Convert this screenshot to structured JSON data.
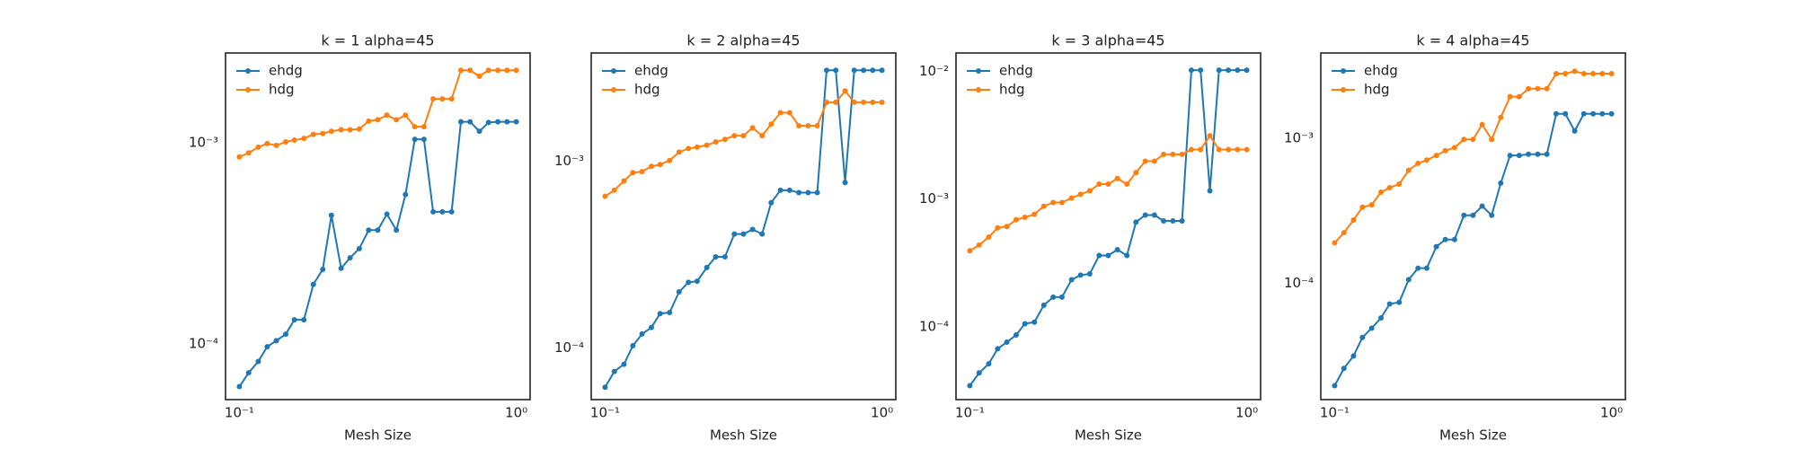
{
  "chart_data": [
    {
      "type": "line",
      "title": "k = 1 alpha=45",
      "xlabel": "Mesh Size",
      "xscale": "log",
      "yscale": "log",
      "legend": "upper left",
      "grid": false,
      "x": [
        0.1,
        0.108,
        0.117,
        0.126,
        0.136,
        0.147,
        0.158,
        0.171,
        0.185,
        0.2,
        0.215,
        0.233,
        0.251,
        0.271,
        0.293,
        0.316,
        0.341,
        0.369,
        0.398,
        0.43,
        0.464,
        0.501,
        0.541,
        0.584,
        0.631,
        0.681,
        0.736,
        0.794,
        0.858,
        0.926,
        1
      ],
      "xlim": [
        0.0891,
        1.122
      ],
      "xticks": [
        {
          "value": 0.1,
          "label": "10⁻¹"
        },
        {
          "value": 1,
          "label": "10⁰"
        }
      ],
      "ylim": [
        5.3e-05,
        0.00279
      ],
      "yticks": [
        {
          "value": 0.0001,
          "label": "10⁻⁴"
        },
        {
          "value": 0.001,
          "label": "10⁻³"
        }
      ],
      "series": [
        {
          "name": "ehdg",
          "color": "#1f77b4",
          "values": [
            6.15e-05,
            7.2e-05,
            8.2e-05,
            9.7e-05,
            0.000104,
            0.000112,
            0.000132,
            0.000132,
            0.000198,
            0.000235,
            0.000436,
            0.000238,
            0.000268,
            0.000298,
            0.000368,
            0.000368,
            0.000442,
            0.000368,
            0.000553,
            0.00104,
            0.00104,
            0.000454,
            0.000454,
            0.000454,
            0.00127,
            0.00127,
            0.00114,
            0.00126,
            0.00127,
            0.00127,
            0.00127
          ]
        },
        {
          "name": "hdg",
          "color": "#ff7f0e",
          "values": [
            0.00085,
            0.00089,
            0.00095,
            0.00099,
            0.00097,
            0.00101,
            0.00103,
            0.00105,
            0.0011,
            0.00111,
            0.00114,
            0.00116,
            0.00116,
            0.00117,
            0.00128,
            0.0013,
            0.00137,
            0.0013,
            0.00137,
            0.0012,
            0.0012,
            0.00165,
            0.00165,
            0.00165,
            0.00229,
            0.00229,
            0.00214,
            0.00229,
            0.00229,
            0.00229,
            0.00229
          ]
        }
      ]
    },
    {
      "type": "line",
      "title": "k = 2 alpha=45",
      "xlabel": "Mesh Size",
      "xscale": "log",
      "yscale": "log",
      "legend": "upper left",
      "grid": false,
      "x": [
        0.1,
        0.108,
        0.117,
        0.126,
        0.136,
        0.147,
        0.158,
        0.171,
        0.185,
        0.2,
        0.215,
        0.233,
        0.251,
        0.271,
        0.293,
        0.316,
        0.341,
        0.369,
        0.398,
        0.43,
        0.464,
        0.501,
        0.541,
        0.584,
        0.631,
        0.681,
        0.736,
        0.794,
        0.858,
        0.926,
        1
      ],
      "xlim": [
        0.0891,
        1.122
      ],
      "xticks": [
        {
          "value": 0.1,
          "label": "10⁻¹"
        },
        {
          "value": 1,
          "label": "10⁰"
        }
      ],
      "ylim": [
        5.3e-05,
        0.0038
      ],
      "yticks": [
        {
          "value": 0.0001,
          "label": "10⁻⁴"
        },
        {
          "value": 0.001,
          "label": "10⁻³"
        }
      ],
      "series": [
        {
          "name": "ehdg",
          "color": "#1f77b4",
          "values": [
            6.17e-05,
            7.5e-05,
            8.2e-05,
            0.000103,
            0.000119,
            0.000129,
            0.000153,
            0.000155,
            0.0002,
            0.000225,
            0.000228,
            0.00027,
            0.000308,
            0.000308,
            0.000408,
            0.000408,
            0.000432,
            0.000408,
            0.0006,
            0.0007,
            0.0007,
            0.00068,
            0.00068,
            0.00068,
            0.00307,
            0.00307,
            0.00077,
            0.00307,
            0.00307,
            0.00307,
            0.00307
          ]
        },
        {
          "name": "hdg",
          "color": "#ff7f0e",
          "values": [
            0.00065,
            0.0007,
            0.000785,
            0.00087,
            0.00088,
            0.00094,
            0.00096,
            0.00101,
            0.00112,
            0.00117,
            0.00119,
            0.00122,
            0.00127,
            0.00131,
            0.00137,
            0.00137,
            0.00151,
            0.00137,
            0.00158,
            0.00182,
            0.00182,
            0.00155,
            0.00155,
            0.00155,
            0.00207,
            0.00207,
            0.00238,
            0.00207,
            0.00207,
            0.00207,
            0.00207
          ]
        }
      ]
    },
    {
      "type": "line",
      "title": "k = 3 alpha=45",
      "xlabel": "Mesh Size",
      "xscale": "log",
      "yscale": "log",
      "legend": "upper left",
      "grid": false,
      "x": [
        0.1,
        0.108,
        0.117,
        0.126,
        0.136,
        0.147,
        0.158,
        0.171,
        0.185,
        0.2,
        0.215,
        0.233,
        0.251,
        0.271,
        0.293,
        0.316,
        0.341,
        0.369,
        0.398,
        0.43,
        0.464,
        0.501,
        0.541,
        0.584,
        0.631,
        0.681,
        0.736,
        0.794,
        0.858,
        0.926,
        1
      ],
      "xlim": [
        0.0891,
        1.122
      ],
      "xticks": [
        {
          "value": 0.1,
          "label": "10⁻¹"
        },
        {
          "value": 1,
          "label": "10⁰"
        }
      ],
      "ylim": [
        2.7e-05,
        0.0139
      ],
      "yticks": [
        {
          "value": 0.0001,
          "label": "10⁻⁴"
        },
        {
          "value": 0.001,
          "label": "10⁻³"
        },
        {
          "value": 0.01,
          "label": "10⁻²"
        }
      ],
      "series": [
        {
          "name": "ehdg",
          "color": "#1f77b4",
          "values": [
            3.47e-05,
            4.37e-05,
            5.15e-05,
            6.75e-05,
            7.6e-05,
            8.65e-05,
            0.000106,
            0.000109,
            0.000148,
            0.000171,
            0.000171,
            0.000234,
            0.000254,
            0.00026,
            0.000362,
            0.000362,
            0.000402,
            0.000362,
            0.00066,
            0.00075,
            0.00075,
            0.000675,
            0.000675,
            0.000675,
            0.0102,
            0.0102,
            0.00116,
            0.0102,
            0.0102,
            0.0102,
            0.0102
          ]
        },
        {
          "name": "hdg",
          "color": "#ff7f0e",
          "values": [
            0.000394,
            0.000437,
            0.000505,
            0.000596,
            0.00061,
            0.00069,
            0.00072,
            0.00076,
            0.00088,
            0.00094,
            0.00094,
            0.00102,
            0.00109,
            0.00116,
            0.00131,
            0.00131,
            0.00145,
            0.00131,
            0.00161,
            0.00198,
            0.00198,
            0.00224,
            0.00224,
            0.00224,
            0.00244,
            0.00244,
            0.00313,
            0.00244,
            0.00244,
            0.00244,
            0.00244
          ]
        }
      ]
    },
    {
      "type": "line",
      "title": "k = 4 alpha=45",
      "xlabel": "Mesh Size",
      "xscale": "log",
      "yscale": "log",
      "legend": "upper left",
      "grid": false,
      "x": [
        0.1,
        0.108,
        0.117,
        0.126,
        0.136,
        0.147,
        0.158,
        0.171,
        0.185,
        0.2,
        0.215,
        0.233,
        0.251,
        0.271,
        0.293,
        0.316,
        0.341,
        0.369,
        0.398,
        0.43,
        0.464,
        0.501,
        0.541,
        0.584,
        0.631,
        0.681,
        0.736,
        0.794,
        0.858,
        0.926,
        1
      ],
      "xlim": [
        0.0891,
        1.122
      ],
      "xticks": [
        {
          "value": 0.1,
          "label": "10⁻¹"
        },
        {
          "value": 1,
          "label": "10⁰"
        }
      ],
      "ylim": [
        1.58e-05,
        0.00386
      ],
      "yticks": [
        {
          "value": 0.0001,
          "label": "10⁻⁴"
        },
        {
          "value": 0.001,
          "label": "10⁻³"
        }
      ],
      "series": [
        {
          "name": "ehdg",
          "color": "#1f77b4",
          "values": [
            1.97e-05,
            2.59e-05,
            3.16e-05,
            4.24e-05,
            4.9e-05,
            5.78e-05,
            7.2e-05,
            7.4e-05,
            0.000106,
            0.000127,
            0.000127,
            0.000179,
            0.0002,
            0.0002,
            0.000294,
            0.000294,
            0.00034,
            0.000294,
            0.00049,
            0.00076,
            0.00076,
            0.000775,
            0.000775,
            0.000775,
            0.00147,
            0.00147,
            0.00112,
            0.00147,
            0.00147,
            0.00147,
            0.00147
          ]
        },
        {
          "name": "hdg",
          "color": "#ff7f0e",
          "values": [
            0.00019,
            0.000223,
            0.000273,
            0.000334,
            0.000347,
            0.000424,
            0.000456,
            0.000482,
            0.0006,
            0.00067,
            0.000706,
            0.00076,
            0.00082,
            0.00086,
            0.00098,
            0.00098,
            0.00124,
            0.00098,
            0.00139,
            0.00193,
            0.00193,
            0.00219,
            0.00219,
            0.00219,
            0.00278,
            0.00278,
            0.00289,
            0.00278,
            0.00278,
            0.00278,
            0.00278
          ]
        }
      ]
    }
  ]
}
